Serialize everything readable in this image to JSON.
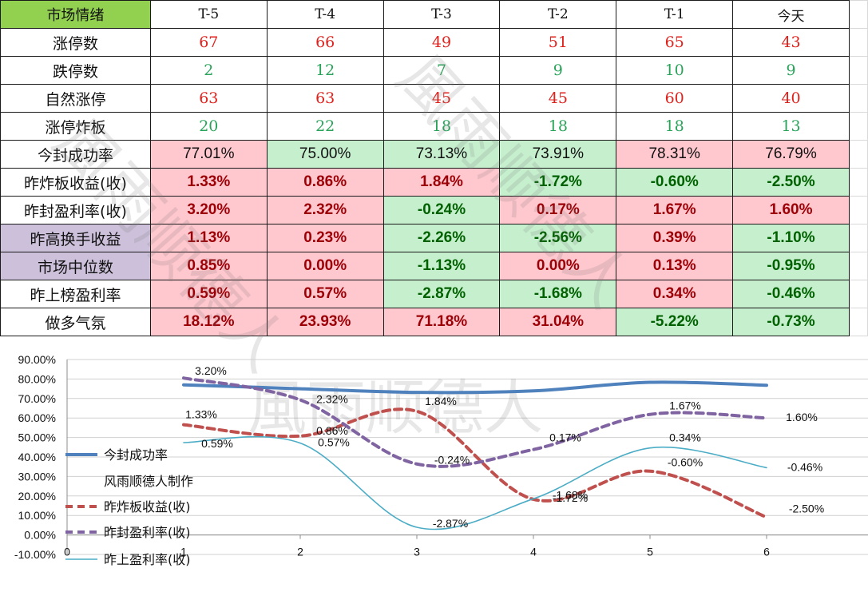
{
  "table": {
    "corner": "市场情绪",
    "headers": [
      "T-5",
      "T-4",
      "T-3",
      "T-2",
      "T-1",
      "今天"
    ],
    "count_rows": [
      {
        "label": "涨停数",
        "color": "red",
        "values": [
          "67",
          "66",
          "49",
          "51",
          "65",
          "43"
        ]
      },
      {
        "label": "跌停数",
        "color": "green",
        "values": [
          "2",
          "12",
          "7",
          "9",
          "10",
          "9"
        ]
      },
      {
        "label": "自然涨停",
        "color": "red",
        "values": [
          "63",
          "63",
          "45",
          "45",
          "60",
          "40"
        ]
      },
      {
        "label": "涨停炸板",
        "color": "green",
        "values": [
          "20",
          "22",
          "18",
          "18",
          "18",
          "13"
        ]
      }
    ],
    "seal_row": {
      "label": "今封成功率",
      "values": [
        "77.01%",
        "75.00%",
        "73.13%",
        "73.91%",
        "78.31%",
        "76.79%"
      ],
      "bg": [
        "pink",
        "green",
        "green",
        "green",
        "pink",
        "pink"
      ]
    },
    "pct_rows": [
      {
        "label": "昨炸板收益(收)",
        "purple": false,
        "values": [
          "1.33%",
          "0.86%",
          "1.84%",
          "-1.72%",
          "-0.60%",
          "-2.50%"
        ]
      },
      {
        "label": "昨封盈利率(收)",
        "purple": false,
        "values": [
          "3.20%",
          "2.32%",
          "-0.24%",
          "0.17%",
          "1.67%",
          "1.60%"
        ]
      },
      {
        "label": "昨高换手收益",
        "purple": true,
        "values": [
          "1.13%",
          "0.23%",
          "-2.26%",
          "-2.56%",
          "0.39%",
          "-1.10%"
        ]
      },
      {
        "label": "市场中位数",
        "purple": true,
        "values": [
          "0.85%",
          "0.00%",
          "-1.13%",
          "0.00%",
          "0.13%",
          "-0.95%"
        ]
      },
      {
        "label": "昨上榜盈利率",
        "purple": false,
        "values": [
          "0.59%",
          "0.57%",
          "-2.87%",
          "-1.68%",
          "0.34%",
          "-0.46%"
        ]
      },
      {
        "label": "做多气氛",
        "purple": false,
        "values": [
          "18.12%",
          "23.93%",
          "71.18%",
          "31.04%",
          "-5.22%",
          "-0.73%"
        ]
      }
    ],
    "watermark": "風雨顺德人"
  },
  "chart_data": {
    "type": "line",
    "x": [
      1,
      2,
      3,
      4,
      5,
      6
    ],
    "xlim": [
      0,
      7
    ],
    "x_ticks": [
      "0",
      "1",
      "2",
      "3",
      "4",
      "5",
      "6"
    ],
    "ylim": [
      -0.1,
      0.9
    ],
    "y_ticks": [
      "90.00%",
      "80.00%",
      "70.00%",
      "60.00%",
      "50.00%",
      "40.00%",
      "30.00%",
      "20.00%",
      "10.00%",
      "0.00%",
      "-10.00%"
    ],
    "legend_position": "left",
    "legend_note": "风雨顺德人制作",
    "watermark": "風雨顺德人",
    "series": [
      {
        "name": "今封成功率",
        "color": "#4f81bd",
        "style": "solid-thick",
        "values": [
          0.7701,
          0.75,
          0.7313,
          0.7391,
          0.7831,
          0.7679
        ],
        "labels": [
          "",
          "",
          "",
          "",
          "",
          ""
        ]
      },
      {
        "name": "昨炸板收益(收)",
        "color": "#c0504d",
        "style": "dashed",
        "values": [
          0.5654,
          0.5075,
          0.6344,
          0.1829,
          0.3274,
          0.0909
        ],
        "labels": [
          "1.33%",
          "0.86%",
          "1.84%",
          "-1.72%",
          "-0.60%",
          "-2.50%"
        ]
      },
      {
        "name": "昨封盈利率(收)",
        "color": "#8064a2",
        "style": "dashed",
        "values": [
          0.805,
          0.6927,
          0.3642,
          0.4383,
          0.6184,
          0.6
        ],
        "labels": [
          "3.20%",
          "2.32%",
          "-0.24%",
          "0.17%",
          "1.67%",
          "1.60%"
        ]
      },
      {
        "name": "昨上盈利率(收)",
        "color": "#4bacc6",
        "style": "solid-thin",
        "values": [
          0.4738,
          0.4713,
          0.0394,
          0.1856,
          0.4464,
          0.345
        ],
        "labels": [
          "0.59%",
          "0.57%",
          "-2.87%",
          "-1.68%",
          "0.34%",
          "-0.46%"
        ]
      }
    ]
  }
}
